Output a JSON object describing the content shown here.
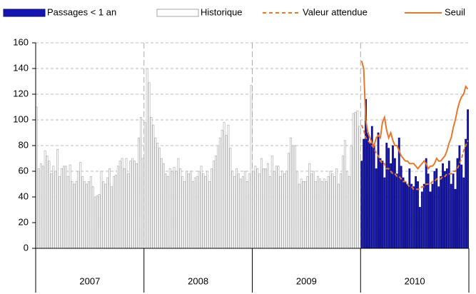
{
  "chart_data": {
    "type": "bar",
    "categories": [
      "2007",
      "2008",
      "2009",
      "2010"
    ],
    "ylim": [
      0,
      160
    ],
    "yticks": [
      0,
      20,
      40,
      60,
      80,
      100,
      120,
      140,
      160
    ],
    "grid": true,
    "legend": "top",
    "series": [
      {
        "name": "Passages < 1 an",
        "kind": "bar",
        "color": "#1515b0",
        "edge": "#0a0a70",
        "values": [
          [],
          [],
          [],
          [
            68,
            85,
            116,
            90,
            82,
            95,
            80,
            62,
            90,
            70,
            68,
            55,
            82,
            78,
            66,
            80,
            70,
            58,
            86,
            64,
            55,
            52,
            50,
            62,
            50,
            48,
            56,
            52,
            32,
            44,
            50,
            70,
            58,
            44,
            50,
            60,
            62,
            48,
            56,
            66,
            60,
            62,
            68,
            50,
            58,
            46,
            70,
            80,
            65,
            55,
            85,
            108
          ]
        ]
      },
      {
        "name": "Historique",
        "kind": "bar",
        "color": "#ffffff",
        "edge": "#a6a6a6",
        "values": [
          [
            110,
            62,
            66,
            64,
            76,
            72,
            68,
            58,
            64,
            60,
            77,
            56,
            62,
            64,
            64,
            56,
            65,
            52,
            50,
            52,
            60,
            67,
            56,
            52,
            50,
            52,
            56,
            48,
            40,
            41,
            42,
            60,
            52,
            50,
            55,
            62,
            48,
            56,
            57,
            64,
            68,
            70,
            62,
            70,
            58,
            68,
            70,
            68,
            66,
            86,
            102,
            70
          ],
          [
            98,
            140,
            129,
            102,
            96,
            86,
            82,
            78,
            70,
            66,
            58,
            56,
            62,
            60,
            63,
            60,
            70,
            62,
            56,
            52,
            60,
            58,
            60,
            52,
            55,
            56,
            60,
            64,
            58,
            56,
            60,
            52,
            62,
            68,
            72,
            80,
            86,
            92,
            98,
            88,
            96,
            78,
            60,
            56,
            62,
            58,
            54,
            56,
            60,
            52,
            58,
            127
          ],
          [
            60,
            64,
            62,
            58,
            70,
            62,
            62,
            66,
            56,
            72,
            60,
            64,
            64,
            56,
            60,
            58,
            60,
            74,
            86,
            80,
            80,
            60,
            50,
            54,
            52,
            52,
            56,
            66,
            58,
            60,
            52,
            56,
            54,
            52,
            54,
            52,
            56,
            60,
            58,
            56,
            62,
            50,
            58,
            72,
            84,
            60,
            56,
            80,
            105,
            106,
            107,
            95
          ],
          []
        ]
      },
      {
        "name": "Valeur attendue",
        "kind": "line",
        "dashed": true,
        "color": "#e8772a",
        "values": [
          [],
          [],
          [],
          [
            96,
            92,
            86,
            84,
            82,
            80,
            78,
            74,
            72,
            68,
            66,
            66,
            62,
            62,
            60,
            58,
            58,
            56,
            56,
            54,
            52,
            52,
            50,
            48,
            48,
            46,
            46,
            46,
            46,
            48,
            48,
            50,
            50,
            50,
            52,
            52,
            54,
            54,
            54,
            56,
            56,
            58,
            58,
            58,
            60,
            60,
            62,
            66,
            70,
            76,
            80,
            84
          ]
        ]
      },
      {
        "name": "Seuil",
        "kind": "line",
        "dashed": false,
        "color": "#e8772a",
        "values": [
          [],
          [],
          [],
          [
            146,
            140,
            100,
            90,
            86,
            82,
            80,
            86,
            88,
            86,
            98,
            102,
            92,
            86,
            90,
            84,
            80,
            80,
            76,
            72,
            70,
            68,
            68,
            66,
            66,
            66,
            64,
            62,
            64,
            66,
            68,
            66,
            62,
            64,
            64,
            66,
            70,
            68,
            68,
            70,
            72,
            76,
            82,
            86,
            94,
            100,
            108,
            114,
            118,
            120,
            126,
            124
          ]
        ]
      }
    ]
  }
}
